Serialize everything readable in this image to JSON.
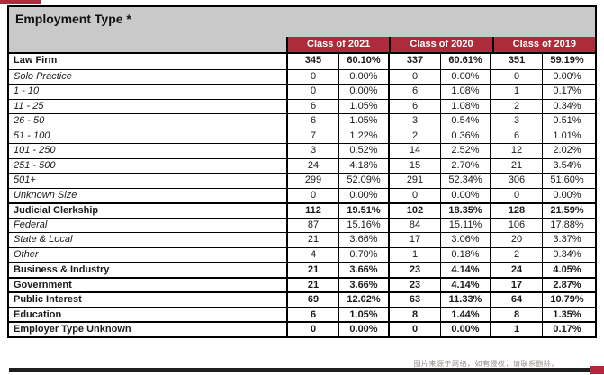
{
  "page": {
    "title": "Employment Type *",
    "watermark": "图片来源于网络，如有侵权，请联系删除。"
  },
  "colors": {
    "header_red": "#AE2B3B",
    "header_gray": "#C9C9C9",
    "bottom_bar": "#1F1F1F"
  },
  "table": {
    "class_headers": [
      "Class of 2021",
      "Class of 2020",
      "Class of 2019"
    ],
    "column_structure": [
      "Employment Type",
      "Count",
      "Percent",
      "Count",
      "Percent",
      "Count",
      "Percent"
    ],
    "rows": [
      {
        "label": "Law Firm",
        "style": "category",
        "values": [
          "345",
          "60.10%",
          "337",
          "60.61%",
          "351",
          "59.19%"
        ]
      },
      {
        "label": "Solo Practice",
        "style": "sub",
        "values": [
          "0",
          "0.00%",
          "0",
          "0.00%",
          "0",
          "0.00%"
        ]
      },
      {
        "label": "1 - 10",
        "style": "sub",
        "values": [
          "0",
          "0.00%",
          "6",
          "1.08%",
          "1",
          "0.17%"
        ]
      },
      {
        "label": "11 - 25",
        "style": "sub",
        "values": [
          "6",
          "1.05%",
          "6",
          "1.08%",
          "2",
          "0.34%"
        ]
      },
      {
        "label": "26 - 50",
        "style": "sub",
        "values": [
          "6",
          "1.05%",
          "3",
          "0.54%",
          "3",
          "0.51%"
        ]
      },
      {
        "label": "51 - 100",
        "style": "sub",
        "values": [
          "7",
          "1.22%",
          "2",
          "0.36%",
          "6",
          "1.01%"
        ]
      },
      {
        "label": "101 - 250",
        "style": "sub",
        "values": [
          "3",
          "0.52%",
          "14",
          "2.52%",
          "12",
          "2.02%"
        ]
      },
      {
        "label": "251 - 500",
        "style": "sub",
        "values": [
          "24",
          "4.18%",
          "15",
          "2.70%",
          "21",
          "3.54%"
        ]
      },
      {
        "label": "501+",
        "style": "sub",
        "values": [
          "299",
          "52.09%",
          "291",
          "52.34%",
          "306",
          "51.60%"
        ]
      },
      {
        "label": "Unknown Size",
        "style": "sub",
        "values": [
          "0",
          "0.00%",
          "0",
          "0.00%",
          "0",
          "0.00%"
        ]
      },
      {
        "label": "Judicial Clerkship",
        "style": "category",
        "values": [
          "112",
          "19.51%",
          "102",
          "18.35%",
          "128",
          "21.59%"
        ]
      },
      {
        "label": "Federal",
        "style": "sub",
        "values": [
          "87",
          "15.16%",
          "84",
          "15.11%",
          "106",
          "17.88%"
        ]
      },
      {
        "label": "State & Local",
        "style": "sub",
        "values": [
          "21",
          "3.66%",
          "17",
          "3.06%",
          "20",
          "3.37%"
        ]
      },
      {
        "label": "Other",
        "style": "sub",
        "values": [
          "4",
          "0.70%",
          "1",
          "0.18%",
          "2",
          "0.34%"
        ]
      },
      {
        "label": "Business & Industry",
        "style": "category",
        "values": [
          "21",
          "3.66%",
          "23",
          "4.14%",
          "24",
          "4.05%"
        ]
      },
      {
        "label": "Government",
        "style": "category",
        "values": [
          "21",
          "3.66%",
          "23",
          "4.14%",
          "17",
          "2.87%"
        ]
      },
      {
        "label": "Public Interest",
        "style": "category",
        "values": [
          "69",
          "12.02%",
          "63",
          "11.33%",
          "64",
          "10.79%"
        ]
      },
      {
        "label": "Education",
        "style": "category",
        "values": [
          "6",
          "1.05%",
          "8",
          "1.44%",
          "8",
          "1.35%"
        ]
      },
      {
        "label": "Employer Type Unknown",
        "style": "category",
        "values": [
          "0",
          "0.00%",
          "0",
          "0.00%",
          "1",
          "0.17%"
        ]
      }
    ]
  }
}
